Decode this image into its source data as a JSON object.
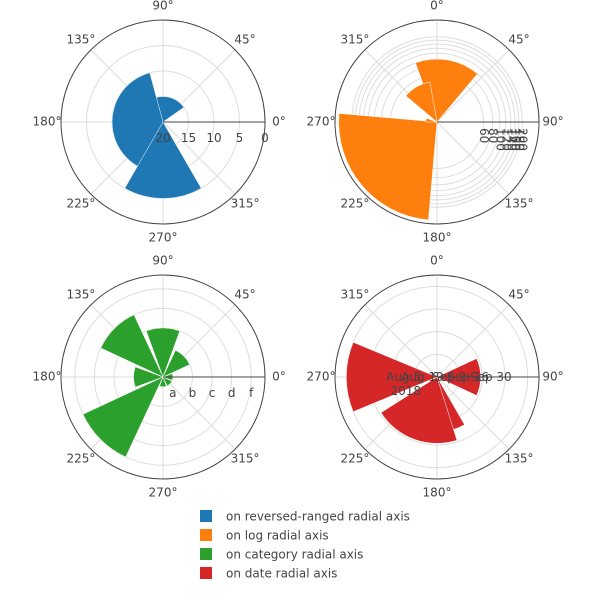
{
  "chart_data": [
    {
      "type": "barpolar",
      "series": [
        {
          "name": "on reversed-ranged radial axis",
          "color": "#1f77b4",
          "r": [
            20,
            15,
            10,
            5
          ],
          "theta": [
            0,
            90,
            180,
            270
          ],
          "width": [
            70,
            110,
            150,
            60
          ]
        }
      ],
      "radial_range": [
        20,
        0
      ],
      "radial_ticks": [
        20,
        15,
        10,
        5,
        0
      ],
      "radial_angle": 0,
      "angular_ticks": [
        0,
        45,
        90,
        135,
        180,
        225,
        270,
        315
      ],
      "angular_direction": "counterclockwise",
      "angular_rotation": 0
    },
    {
      "type": "barpolar",
      "series": [
        {
          "name": "on log radial axis",
          "color": "#ff7f0e",
          "r": [
            100,
            300,
            50,
            20
          ],
          "theta": [
            10,
            230,
            330,
            280
          ],
          "width": [
            60,
            90,
            40,
            20
          ]
        }
      ],
      "radial_type": "log",
      "radial_ticks": [
        60,
        80,
        100,
        120,
        140,
        160,
        180,
        200
      ],
      "radial_angle": 90,
      "angular_ticks": [
        0,
        45,
        90,
        135,
        180,
        225,
        270,
        315
      ],
      "angular_direction": "clockwise",
      "angular_rotation": 90
    },
    {
      "type": "barpolar",
      "series": [
        {
          "name": "on category radial axis",
          "color": "#2ca02c",
          "r": [
            "a",
            "b",
            "c",
            "d",
            "b",
            "f",
            "a",
            "a"
          ],
          "theta": [
            0,
            45,
            90,
            135,
            180,
            225,
            270,
            315
          ],
          "width": [
            40,
            40,
            40,
            40,
            40,
            40,
            40,
            40
          ]
        }
      ],
      "radial_categories": [
        "a",
        "b",
        "c",
        "d",
        "f"
      ],
      "radial_tick_labels": [
        "a",
        "b",
        "c",
        "d",
        "f"
      ],
      "radial_angle": 0,
      "angular_ticks": [
        0,
        45,
        90,
        135,
        180,
        225,
        270,
        315
      ],
      "angular_direction": "counterclockwise",
      "angular_rotation": 0
    },
    {
      "type": "barpolar",
      "series": [
        {
          "name": "on date radial axis",
          "color": "#d62728",
          "r": [
            "2018-09-01",
            "2018-09-08",
            "2018-09-15",
            "2018-09-30"
          ],
          "theta": [
            90,
            180,
            200,
            270
          ],
          "width": [
            50,
            60,
            75,
            45
          ]
        }
      ],
      "radial_type": "date",
      "radial_range": [
        "2018-08-05",
        "2018-10-07"
      ],
      "radial_tick_labels": [
        "Aug 5\n2018",
        "Aug 19",
        "Sep 2",
        "Sep 16",
        "Sep 30"
      ],
      "radial_tick_values": [
        "2018-08-05",
        "2018-08-19",
        "2018-09-02",
        "2018-09-16",
        "2018-09-30"
      ],
      "radial_angle": 90,
      "angular_ticks": [
        0,
        45,
        90,
        135,
        180,
        225,
        270,
        315
      ],
      "angular_direction": "clockwise",
      "angular_rotation": 90
    }
  ],
  "legend": {
    "items": [
      {
        "label": "on reversed-ranged radial axis",
        "color": "#1f77b4"
      },
      {
        "label": "on log radial axis",
        "color": "#ff7f0e"
      },
      {
        "label": "on category radial axis",
        "color": "#2ca02c"
      },
      {
        "label": "on date radial axis",
        "color": "#d62728"
      }
    ]
  },
  "angle_suffix": "°"
}
